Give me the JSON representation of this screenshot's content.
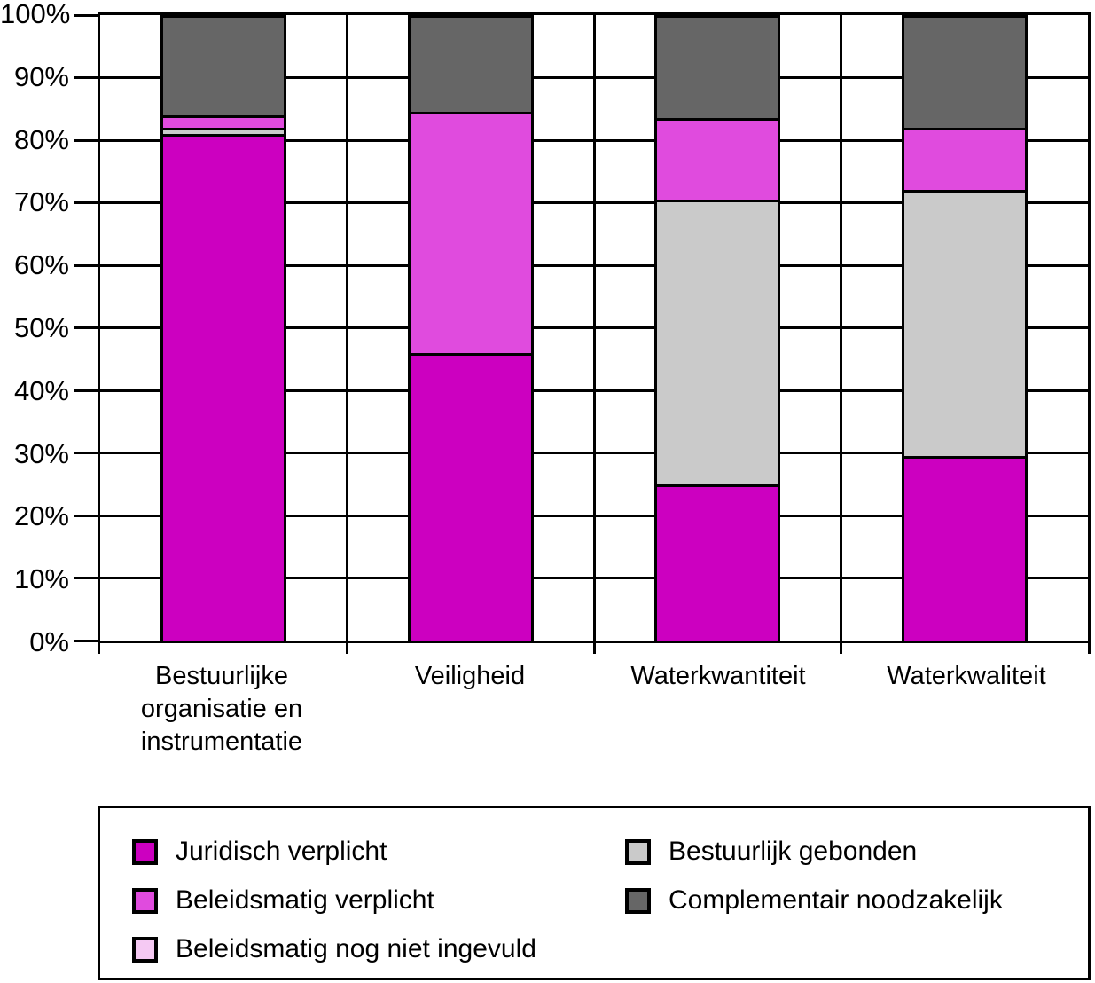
{
  "chart_data": {
    "type": "bar",
    "stacked": true,
    "title": "",
    "xlabel": "",
    "ylabel": "",
    "categories": [
      "Bestuurlijke organisatie en instrumentatie",
      "Veiligheid",
      "Waterkwantiteit",
      "Waterkwaliteit"
    ],
    "series": [
      {
        "name": "Juridisch verplicht",
        "color": "#CC00C0",
        "values": [
          81,
          46,
          25,
          29.5
        ]
      },
      {
        "name": "Beleidsmatig verplicht",
        "color": "#E04BDE",
        "values": [
          2,
          38.5,
          13,
          10
        ]
      },
      {
        "name": "Beleidsmatig nog niet ingevuld",
        "color": "#F5C9F3",
        "values": [
          0,
          0,
          0,
          0
        ]
      },
      {
        "name": "Bestuurlijk gebonden",
        "color": "#CACACA",
        "values": [
          1,
          0,
          45.5,
          42.5
        ]
      },
      {
        "name": "Complementair noodzakelijk",
        "color": "#666666",
        "values": [
          16,
          15.5,
          16.5,
          18
        ]
      }
    ],
    "stack_order_bottom_to_top": [
      "Juridisch verplicht",
      "Bestuurlijk gebonden",
      "Beleidsmatig verplicht",
      "Beleidsmatig nog niet ingevuld",
      "Complementair noodzakelijk"
    ],
    "y_axis": {
      "min": 0,
      "max": 100,
      "tick_step": 10,
      "tick_labels": [
        "0%",
        "10%",
        "20%",
        "30%",
        "40%",
        "50%",
        "60%",
        "70%",
        "80%",
        "90%",
        "100%"
      ]
    },
    "grid": true,
    "legend": {
      "position": "bottom-box",
      "columns": [
        [
          "Juridisch verplicht",
          "Beleidsmatig verplicht",
          "Beleidsmatig nog niet ingevuld"
        ],
        [
          "Bestuurlijk gebonden",
          "Complementair noodzakelijk"
        ]
      ]
    },
    "colors": {
      "axis": "#000000",
      "background": "#FFFFFF"
    }
  }
}
